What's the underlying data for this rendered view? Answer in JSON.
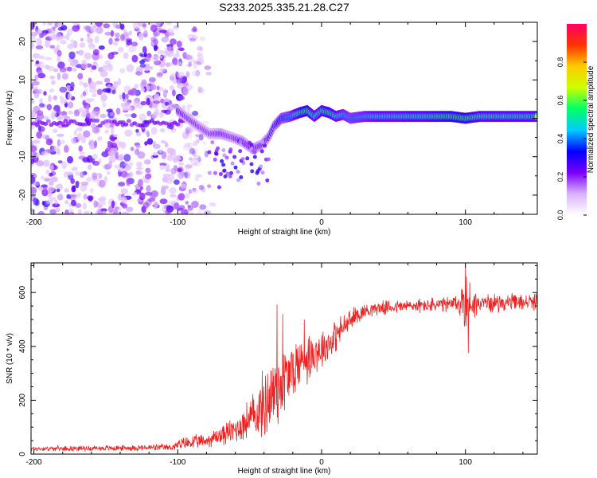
{
  "chart_data": [
    {
      "type": "heatmap",
      "title": "S233.2025.335.21.28.C27",
      "xlabel": "Height of straight line (km)",
      "ylabel": "Frequency (Hz)",
      "xlim": [
        -202,
        150
      ],
      "ylim": [
        -25,
        25
      ],
      "xticks": [
        -200,
        -100,
        0,
        100
      ],
      "yticks": [
        -20,
        -10,
        0,
        10,
        20
      ],
      "colorbar": {
        "label": "Normalized spectral amplitude",
        "range": [
          0,
          1
        ],
        "ticks": [
          "0.0",
          "0.2",
          "0.4",
          "0.6",
          "0.8"
        ],
        "colors": [
          "#ffffff",
          "#d9b3ff",
          "#7a00ff",
          "#0000ff",
          "#00ccff",
          "#00ff66",
          "#ccff00",
          "#ffcc00",
          "#ff3300",
          "#ff0066"
        ]
      },
      "noise_region_km": [
        -202,
        -95
      ],
      "trace": [
        {
          "x": -100,
          "f": 2,
          "amp": 0.35
        },
        {
          "x": -93,
          "f": 0,
          "amp": 0.3
        },
        {
          "x": -86,
          "f": -2,
          "amp": 0.3
        },
        {
          "x": -78,
          "f": -4,
          "amp": 0.3
        },
        {
          "x": -70,
          "f": -4,
          "amp": 0.35
        },
        {
          "x": -62,
          "f": -5,
          "amp": 0.3
        },
        {
          "x": -55,
          "f": -6,
          "amp": 0.35
        },
        {
          "x": -48,
          "f": -8,
          "amp": 0.35
        },
        {
          "x": -42,
          "f": -7,
          "amp": 0.35
        },
        {
          "x": -37,
          "f": -5,
          "amp": 0.35
        },
        {
          "x": -33,
          "f": -2,
          "amp": 0.4
        },
        {
          "x": -28,
          "f": 0,
          "amp": 0.5
        },
        {
          "x": -22,
          "f": 0.5,
          "amp": 0.55
        },
        {
          "x": -15,
          "f": 1.5,
          "amp": 0.75
        },
        {
          "x": -10,
          "f": 2,
          "amp": 0.8
        },
        {
          "x": -5,
          "f": 0.5,
          "amp": 0.65
        },
        {
          "x": 0,
          "f": 2,
          "amp": 0.7
        },
        {
          "x": 5,
          "f": 1.5,
          "amp": 0.75
        },
        {
          "x": 10,
          "f": 0.5,
          "amp": 0.65
        },
        {
          "x": 15,
          "f": 1,
          "amp": 0.6
        },
        {
          "x": 20,
          "f": 0,
          "amp": 0.55
        },
        {
          "x": 30,
          "f": 0.5,
          "amp": 0.6
        },
        {
          "x": 40,
          "f": 0.5,
          "amp": 0.65
        },
        {
          "x": 50,
          "f": 0.5,
          "amp": 0.65
        },
        {
          "x": 60,
          "f": 0.5,
          "amp": 0.7
        },
        {
          "x": 70,
          "f": 0.5,
          "amp": 0.7
        },
        {
          "x": 80,
          "f": 0.5,
          "amp": 0.75
        },
        {
          "x": 90,
          "f": 0.5,
          "amp": 0.8
        },
        {
          "x": 100,
          "f": 0,
          "amp": 0.8
        },
        {
          "x": 110,
          "f": 0.5,
          "amp": 0.7
        },
        {
          "x": 120,
          "f": 0.5,
          "amp": 0.7
        },
        {
          "x": 130,
          "f": 0.5,
          "amp": 0.7
        },
        {
          "x": 140,
          "f": 0.5,
          "amp": 0.7
        },
        {
          "x": 150,
          "f": 0.5,
          "amp": 0.7
        }
      ]
    },
    {
      "type": "line",
      "title": "",
      "xlabel": "Height of straight line (km)",
      "ylabel": "SNR (10 * v/v)",
      "xlim": [
        -202,
        150
      ],
      "ylim": [
        0,
        710
      ],
      "xticks": [
        -200,
        -100,
        0,
        100
      ],
      "yticks": [
        0,
        200,
        400,
        600
      ],
      "series": [
        {
          "name": "SNR",
          "color": "#ee2222",
          "envelope": [
            {
              "x": -202,
              "mean": 20,
              "spread": 10
            },
            {
              "x": -150,
              "mean": 22,
              "spread": 12
            },
            {
              "x": -105,
              "mean": 25,
              "spread": 15
            },
            {
              "x": -95,
              "mean": 40,
              "spread": 30
            },
            {
              "x": -80,
              "mean": 50,
              "spread": 30
            },
            {
              "x": -60,
              "mean": 90,
              "spread": 60
            },
            {
              "x": -45,
              "mean": 150,
              "spread": 110
            },
            {
              "x": -35,
              "mean": 220,
              "spread": 200
            },
            {
              "x": -25,
              "mean": 280,
              "spread": 160
            },
            {
              "x": -15,
              "mean": 340,
              "spread": 120
            },
            {
              "x": -5,
              "mean": 380,
              "spread": 100
            },
            {
              "x": 5,
              "mean": 410,
              "spread": 80
            },
            {
              "x": 15,
              "mean": 470,
              "spread": 60
            },
            {
              "x": 25,
              "mean": 520,
              "spread": 40
            },
            {
              "x": 35,
              "mean": 540,
              "spread": 30
            },
            {
              "x": 60,
              "mean": 550,
              "spread": 30
            },
            {
              "x": 90,
              "mean": 555,
              "spread": 35
            },
            {
              "x": 96,
              "mean": 560,
              "spread": 60
            },
            {
              "x": 100,
              "mean": 560,
              "spread": 140
            },
            {
              "x": 104,
              "mean": 560,
              "spread": 80
            },
            {
              "x": 110,
              "mean": 560,
              "spread": 40
            },
            {
              "x": 150,
              "mean": 565,
              "spread": 35
            }
          ],
          "peaks": [
            {
              "x": -31,
              "y": 555
            },
            {
              "x": -27,
              "y": 520
            },
            {
              "x": -12,
              "y": 500
            },
            {
              "x": 100,
              "y": 710
            },
            {
              "x": 102,
              "y": 690
            },
            {
              "x": 102,
              "y": 375
            }
          ]
        }
      ]
    }
  ]
}
